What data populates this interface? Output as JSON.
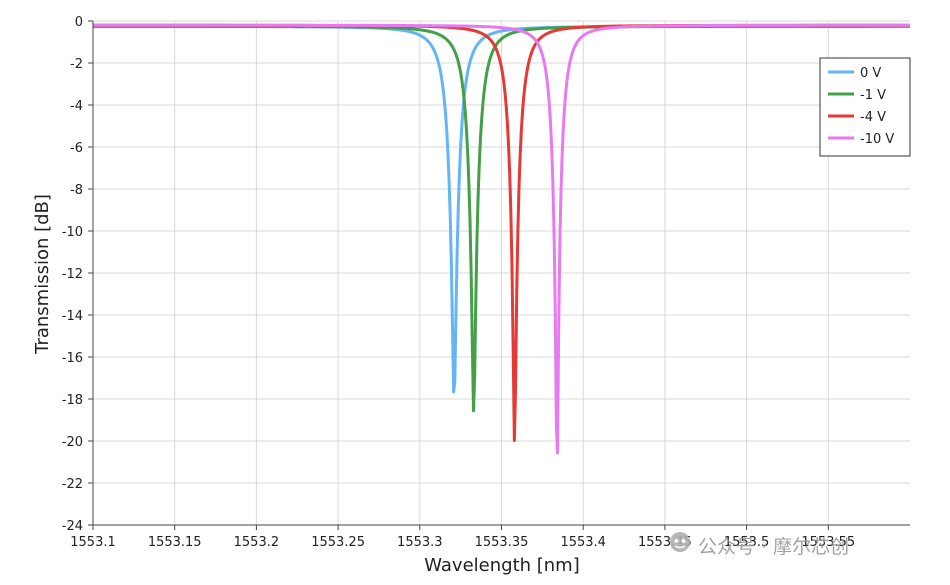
{
  "chart_data": {
    "type": "line",
    "xlabel": "Wavelength [nm]",
    "ylabel": "Transmission [dB]",
    "xlim": [
      1553.1,
      1553.6
    ],
    "ylim": [
      -24,
      0
    ],
    "x_ticks": [
      1553.1,
      1553.15,
      1553.2,
      1553.25,
      1553.3,
      1553.35,
      1553.4,
      1553.45,
      1553.5,
      1553.55
    ],
    "x_tick_labels": [
      "1553.1",
      "1553.15",
      "1553.2",
      "1553.25",
      "1553.3",
      "1553.35",
      "1553.4",
      "1553.45",
      "1553.5",
      "1553.55"
    ],
    "y_ticks": [
      0,
      -2,
      -4,
      -6,
      -8,
      -10,
      -12,
      -14,
      -16,
      -18,
      -20,
      -22,
      -24
    ],
    "y_tick_labels": [
      "0",
      "-2",
      "-4",
      "-6",
      "-8",
      "-10",
      "-12",
      "-14",
      "-16",
      "-18",
      "-20",
      "-22",
      "-24"
    ],
    "grid": true,
    "legend_position": "top-right",
    "series": [
      {
        "name": "0 V",
        "color": "#64b5f6",
        "dip_center_nm": 1553.321,
        "min_db": -18.1,
        "edge_db": -0.25,
        "half_width_nm": 0.0068
      },
      {
        "name": "-1 V",
        "color": "#43a047",
        "dip_center_nm": 1553.333,
        "min_db": -18.7,
        "edge_db": -0.25,
        "half_width_nm": 0.0066
      },
      {
        "name": "-4 V",
        "color": "#e53935",
        "dip_center_nm": 1553.358,
        "min_db": -20.2,
        "edge_db": -0.2,
        "half_width_nm": 0.0062
      },
      {
        "name": "-10 V",
        "color": "#e879f0",
        "dip_center_nm": 1553.384,
        "min_db": -22.0,
        "edge_db": -0.2,
        "half_width_nm": 0.0056
      }
    ]
  },
  "watermark": {
    "text": "公众号 · 摩尔芯创",
    "icon": "wechat-official-account-icon"
  }
}
